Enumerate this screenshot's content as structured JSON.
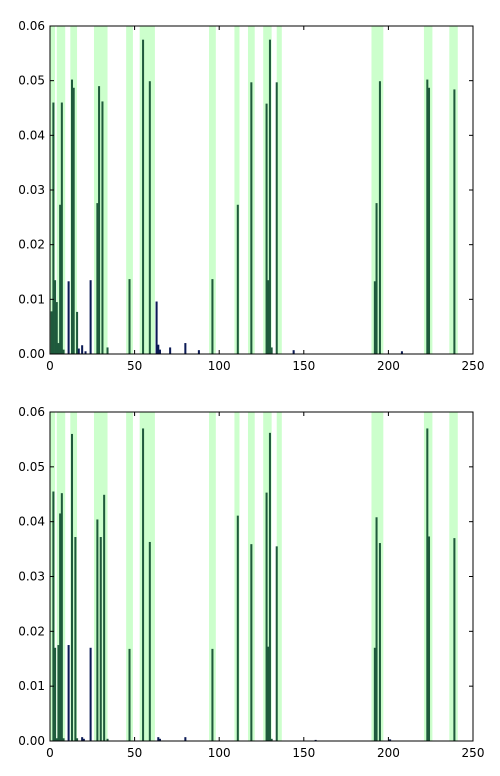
{
  "chart_data": [
    {
      "type": "bar",
      "title": "",
      "xlabel": "",
      "ylabel": "",
      "xlim": [
        0,
        250
      ],
      "ylim": [
        0,
        0.06
      ],
      "xticks": [
        "0",
        "50",
        "100",
        "150",
        "200",
        "250"
      ],
      "yticks": [
        "0.00",
        "0.01",
        "0.02",
        "0.03",
        "0.04",
        "0.05",
        "0.06"
      ],
      "grid": false,
      "highlight_color": "#ccffcc",
      "bar_color": "#0b1a55",
      "highlighted_bar_color": "#1f5a3c",
      "highlight_bands": [
        [
          0,
          3
        ],
        [
          4,
          9
        ],
        [
          12,
          16
        ],
        [
          26,
          34
        ],
        [
          45,
          49
        ],
        [
          53,
          62
        ],
        [
          94,
          98
        ],
        [
          109,
          112
        ],
        [
          117,
          121
        ],
        [
          126,
          131
        ],
        [
          134,
          137
        ],
        [
          190,
          197
        ],
        [
          221,
          226
        ],
        [
          236,
          241
        ]
      ],
      "bars": [
        {
          "x": 1,
          "y": 0.0078
        },
        {
          "x": 2,
          "y": 0.046
        },
        {
          "x": 3,
          "y": 0.0135
        },
        {
          "x": 4,
          "y": 0.0095
        },
        {
          "x": 5,
          "y": 0.002
        },
        {
          "x": 6,
          "y": 0.0273
        },
        {
          "x": 7,
          "y": 0.046
        },
        {
          "x": 8,
          "y": 0.0008
        },
        {
          "x": 11,
          "y": 0.0133
        },
        {
          "x": 13,
          "y": 0.0502
        },
        {
          "x": 14,
          "y": 0.0487
        },
        {
          "x": 16,
          "y": 0.0077
        },
        {
          "x": 17,
          "y": 0.001
        },
        {
          "x": 19,
          "y": 0.0016
        },
        {
          "x": 21,
          "y": 0.0005
        },
        {
          "x": 24,
          "y": 0.0135
        },
        {
          "x": 28,
          "y": 0.0276
        },
        {
          "x": 29,
          "y": 0.049
        },
        {
          "x": 31,
          "y": 0.0462
        },
        {
          "x": 34,
          "y": 0.0012
        },
        {
          "x": 47,
          "y": 0.0137
        },
        {
          "x": 55,
          "y": 0.0575
        },
        {
          "x": 59,
          "y": 0.0499
        },
        {
          "x": 63,
          "y": 0.0096
        },
        {
          "x": 64,
          "y": 0.0017
        },
        {
          "x": 65,
          "y": 0.0008
        },
        {
          "x": 71,
          "y": 0.0012
        },
        {
          "x": 80,
          "y": 0.002
        },
        {
          "x": 88,
          "y": 0.0007
        },
        {
          "x": 96,
          "y": 0.0137
        },
        {
          "x": 111,
          "y": 0.0273
        },
        {
          "x": 119,
          "y": 0.0497
        },
        {
          "x": 128,
          "y": 0.0458
        },
        {
          "x": 129,
          "y": 0.0135
        },
        {
          "x": 130,
          "y": 0.0575
        },
        {
          "x": 131,
          "y": 0.0012
        },
        {
          "x": 134,
          "y": 0.0497
        },
        {
          "x": 144,
          "y": 0.0007
        },
        {
          "x": 192,
          "y": 0.0133
        },
        {
          "x": 193,
          "y": 0.0276
        },
        {
          "x": 195,
          "y": 0.0499
        },
        {
          "x": 208,
          "y": 0.0005
        },
        {
          "x": 223,
          "y": 0.0502
        },
        {
          "x": 224,
          "y": 0.0487
        },
        {
          "x": 239,
          "y": 0.0484
        }
      ]
    },
    {
      "type": "bar",
      "title": "",
      "xlabel": "",
      "ylabel": "",
      "xlim": [
        0,
        250
      ],
      "ylim": [
        0,
        0.06
      ],
      "xticks": [
        "0",
        "50",
        "100",
        "150",
        "200",
        "250"
      ],
      "yticks": [
        "0.00",
        "0.01",
        "0.02",
        "0.03",
        "0.04",
        "0.05",
        "0.06"
      ],
      "grid": false,
      "highlight_color": "#ccffcc",
      "bar_color": "#0b1a55",
      "highlighted_bar_color": "#1f5a3c",
      "highlight_bands": [
        [
          0,
          3
        ],
        [
          4,
          9
        ],
        [
          12,
          16
        ],
        [
          26,
          34
        ],
        [
          45,
          49
        ],
        [
          53,
          62
        ],
        [
          94,
          98
        ],
        [
          109,
          112
        ],
        [
          117,
          121
        ],
        [
          126,
          131
        ],
        [
          134,
          137
        ],
        [
          190,
          197
        ],
        [
          221,
          226
        ],
        [
          236,
          241
        ]
      ],
      "bars": [
        {
          "x": 2,
          "y": 0.0455
        },
        {
          "x": 3,
          "y": 0.017
        },
        {
          "x": 4,
          "y": 0.0005
        },
        {
          "x": 5,
          "y": 0.0175
        },
        {
          "x": 6,
          "y": 0.0415
        },
        {
          "x": 7,
          "y": 0.0452
        },
        {
          "x": 8,
          "y": 0.0005
        },
        {
          "x": 11,
          "y": 0.0175
        },
        {
          "x": 13,
          "y": 0.056
        },
        {
          "x": 15,
          "y": 0.0372
        },
        {
          "x": 16,
          "y": 0.0005
        },
        {
          "x": 19,
          "y": 0.0007
        },
        {
          "x": 20,
          "y": 0.0004
        },
        {
          "x": 24,
          "y": 0.017
        },
        {
          "x": 28,
          "y": 0.0404
        },
        {
          "x": 30,
          "y": 0.0372
        },
        {
          "x": 32,
          "y": 0.0449
        },
        {
          "x": 34,
          "y": 0.0004
        },
        {
          "x": 47,
          "y": 0.0168
        },
        {
          "x": 55,
          "y": 0.057
        },
        {
          "x": 59,
          "y": 0.0363
        },
        {
          "x": 64,
          "y": 0.0007
        },
        {
          "x": 65,
          "y": 0.0004
        },
        {
          "x": 80,
          "y": 0.0007
        },
        {
          "x": 96,
          "y": 0.0168
        },
        {
          "x": 111,
          "y": 0.0411
        },
        {
          "x": 119,
          "y": 0.0359
        },
        {
          "x": 128,
          "y": 0.0453
        },
        {
          "x": 129,
          "y": 0.0172
        },
        {
          "x": 130,
          "y": 0.0562
        },
        {
          "x": 131,
          "y": 0.0004
        },
        {
          "x": 134,
          "y": 0.0355
        },
        {
          "x": 157,
          "y": 0.0002
        },
        {
          "x": 192,
          "y": 0.017
        },
        {
          "x": 193,
          "y": 0.0408
        },
        {
          "x": 195,
          "y": 0.0361
        },
        {
          "x": 201,
          "y": 0.0003
        },
        {
          "x": 223,
          "y": 0.057
        },
        {
          "x": 224,
          "y": 0.0373
        },
        {
          "x": 239,
          "y": 0.037
        }
      ]
    }
  ]
}
